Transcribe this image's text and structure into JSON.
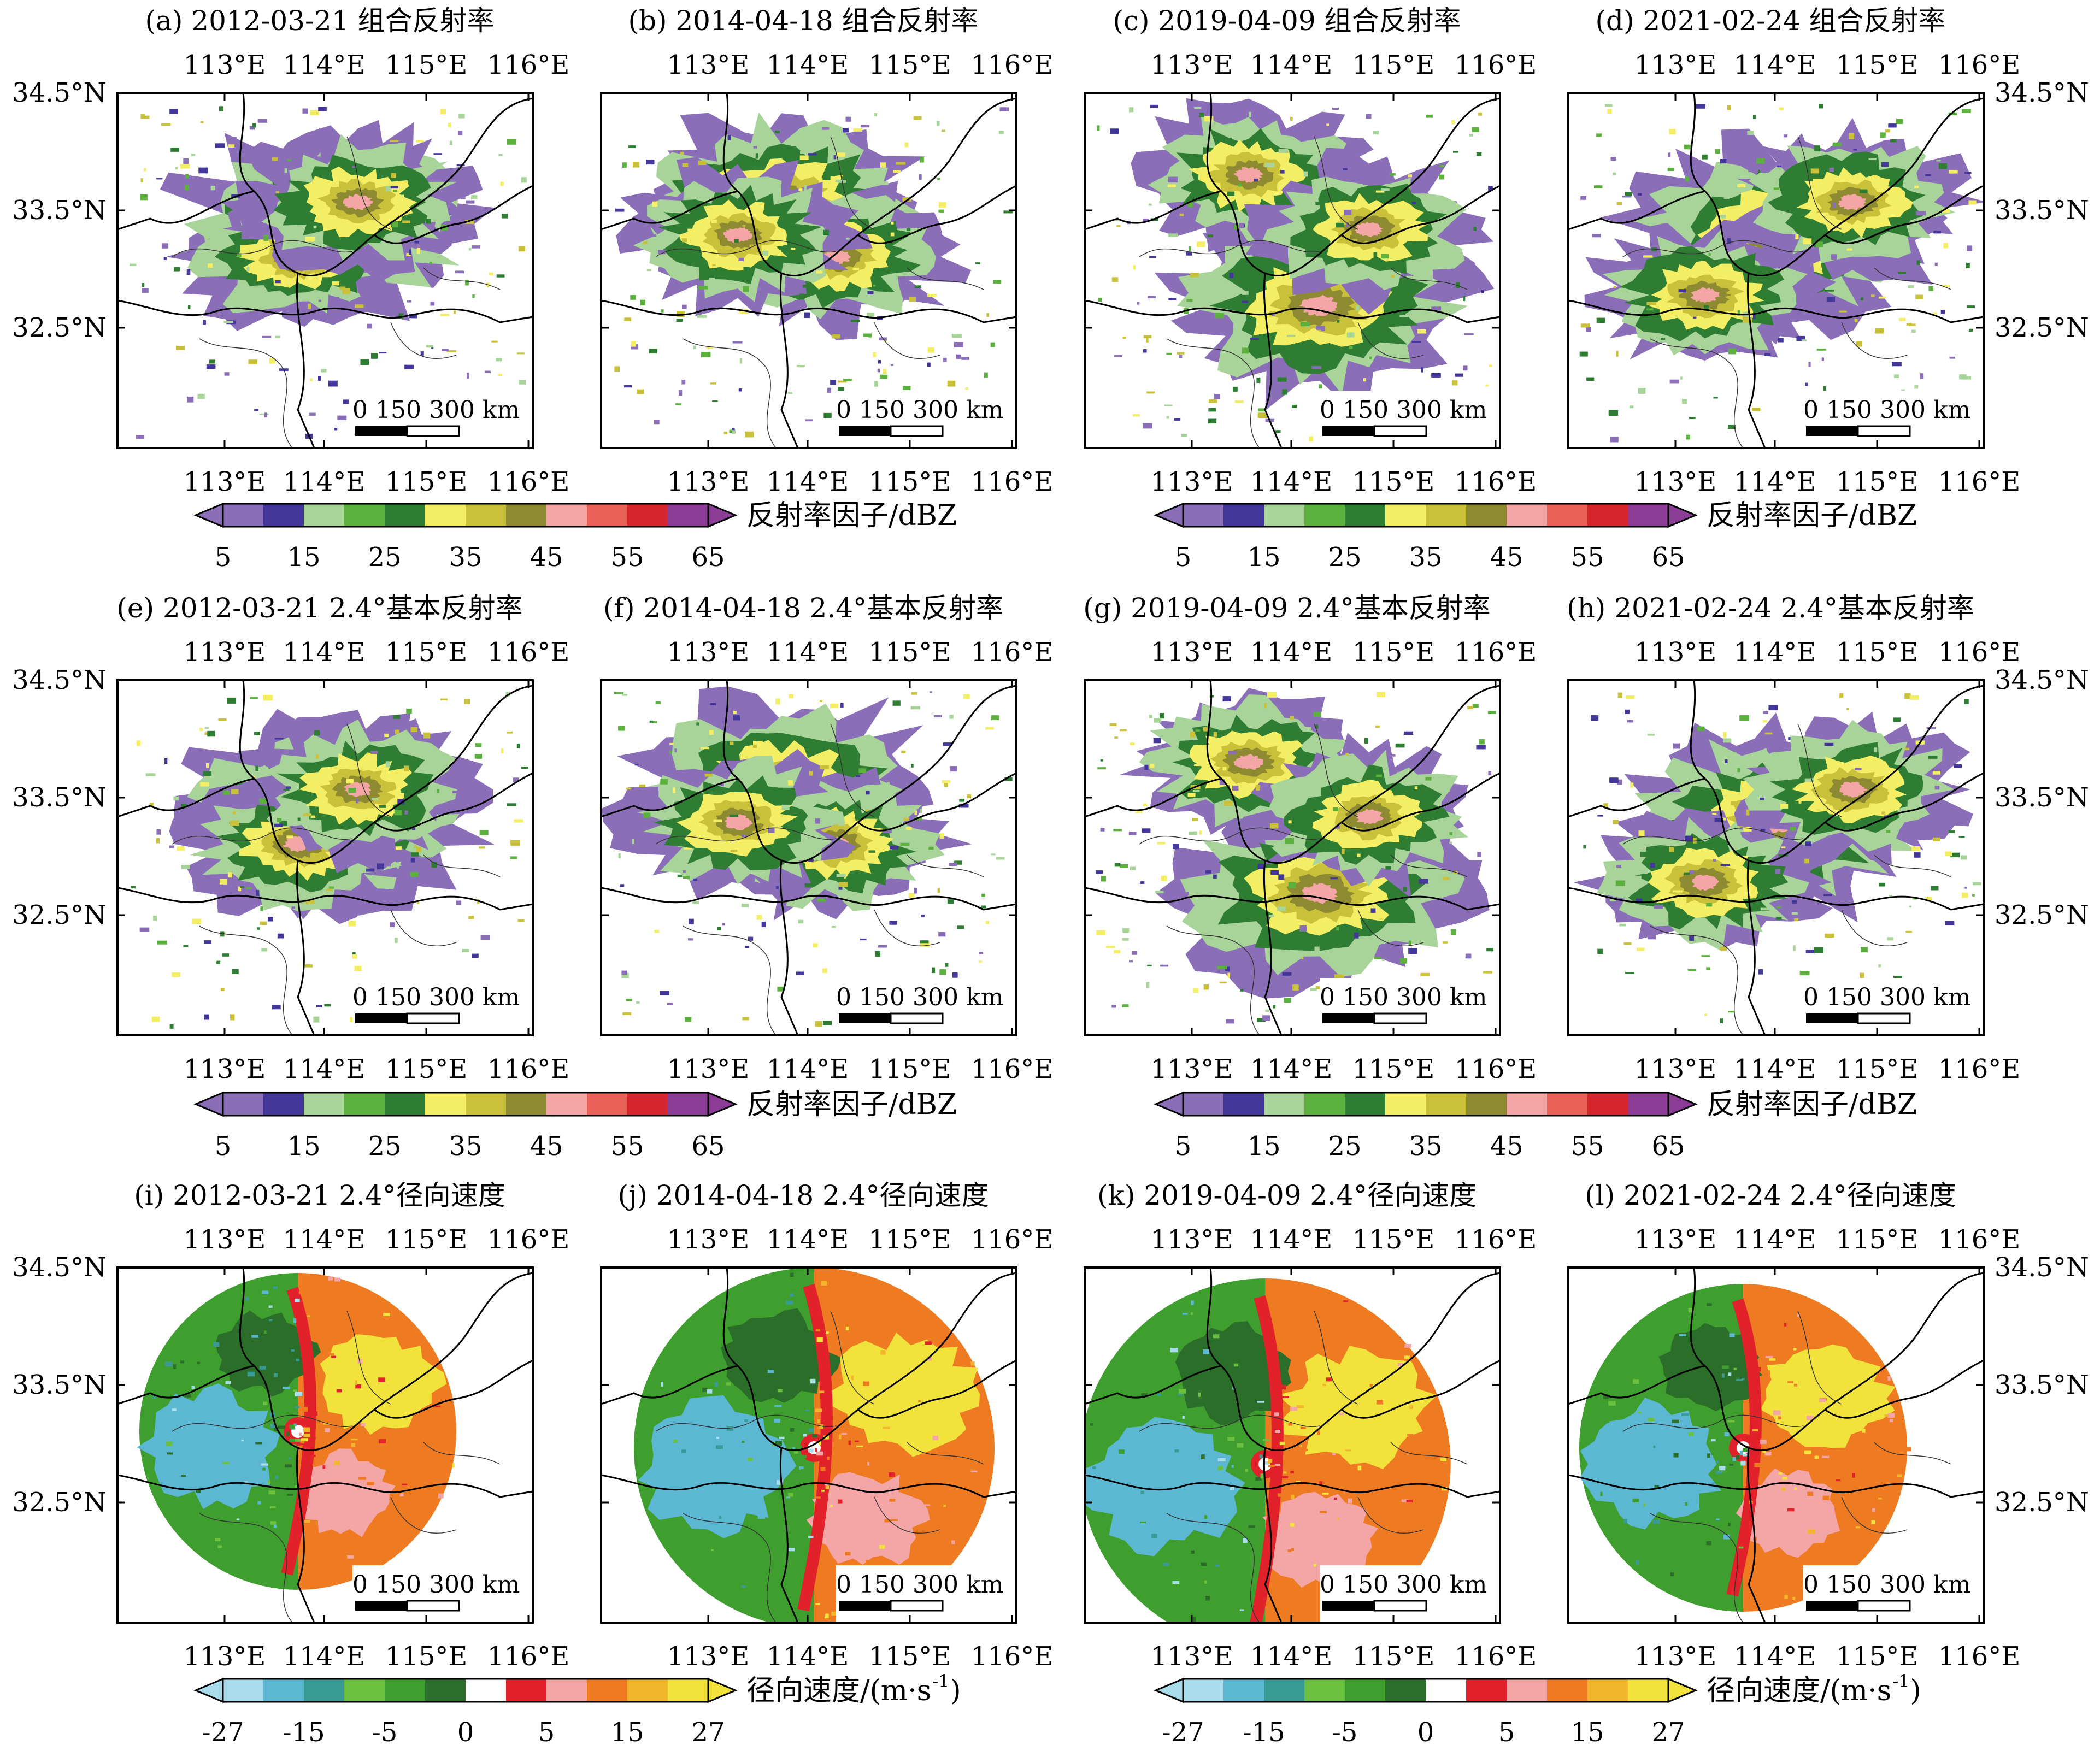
{
  "panels": [
    {
      "id": "a",
      "title": "(a) 2012-03-21 组合反射率",
      "kind": "refl"
    },
    {
      "id": "b",
      "title": "(b) 2014-04-18 组合反射率",
      "kind": "refl"
    },
    {
      "id": "c",
      "title": "(c) 2019-04-09 组合反射率",
      "kind": "refl"
    },
    {
      "id": "d",
      "title": "(d) 2021-02-24 组合反射率",
      "kind": "refl"
    },
    {
      "id": "e",
      "title": "(e) 2012-03-21 2.4°基本反射率",
      "kind": "refl"
    },
    {
      "id": "f",
      "title": "(f) 2014-04-18 2.4°基本反射率",
      "kind": "refl"
    },
    {
      "id": "g",
      "title": "(g) 2019-04-09 2.4°基本反射率",
      "kind": "refl"
    },
    {
      "id": "h",
      "title": "(h) 2021-02-24 2.4°基本反射率",
      "kind": "refl"
    },
    {
      "id": "i",
      "title": "(i) 2012-03-21 2.4°径向速度",
      "kind": "vel"
    },
    {
      "id": "j",
      "title": "(j) 2014-04-18 2.4°径向速度",
      "kind": "vel"
    },
    {
      "id": "k",
      "title": "(k) 2019-04-09 2.4°径向速度",
      "kind": "vel"
    },
    {
      "id": "l",
      "title": "(l) 2021-02-24 2.4°径向速度",
      "kind": "vel"
    }
  ],
  "lon_ticks": [
    "113°E",
    "114°E",
    "115°E",
    "116°E"
  ],
  "lat_ticks": [
    "34.5°N",
    "33.5°N",
    "32.5°N"
  ],
  "scale_bar": {
    "label": "0  150 300 km"
  },
  "colorbars": {
    "reflectivity": {
      "label": "反射率因子/dBZ",
      "tick_labels": [
        "5",
        "15",
        "25",
        "35",
        "45",
        "55",
        "65"
      ],
      "colors": [
        "#8a6fb8",
        "#43379a",
        "#a8d49a",
        "#5cb13e",
        "#2e7d32",
        "#f4ee64",
        "#c9c13a",
        "#8e8a32",
        "#f4a6a6",
        "#e86056",
        "#d8272c",
        "#8b3d96"
      ]
    },
    "velocity": {
      "label": "径向速度/(m·s",
      "label_sup": "-1",
      "label_end": ")",
      "tick_labels": [
        "-27",
        "-15",
        "-5",
        "0",
        "5",
        "15",
        "27"
      ],
      "colors": [
        "#a8dcea",
        "#5cb8d2",
        "#3a9a96",
        "#6cc040",
        "#3e9e2e",
        "#2a6e2a",
        "#ffffff",
        "#e2222a",
        "#f4a6a6",
        "#ee7a22",
        "#f3b52c",
        "#f2e23c"
      ]
    }
  }
}
